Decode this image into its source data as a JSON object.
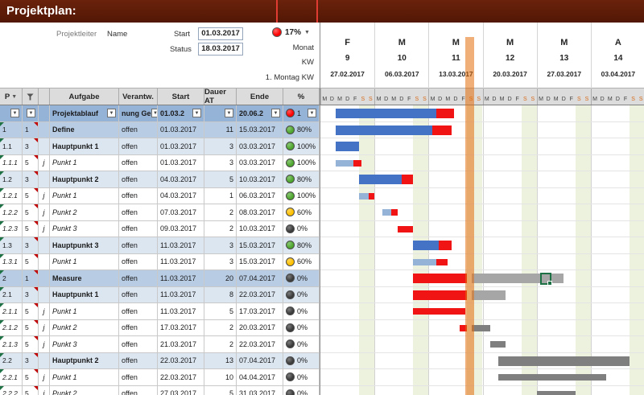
{
  "title": "Projektplan:",
  "header": {
    "projektleiter_label": "Projektleiter",
    "projektleiter_value": "Name",
    "start_label": "Start",
    "start_value": "01.03.2017",
    "status_label": "Status",
    "status_value": "18.03.2017",
    "progress_value": "17%",
    "monat_label": "Monat",
    "kw_label": "KW",
    "montag_label": "1. Montag KW"
  },
  "timeline": {
    "months": [
      "F",
      "M",
      "M",
      "M",
      "M",
      "A"
    ],
    "weeks": [
      "9",
      "10",
      "11",
      "12",
      "13",
      "14"
    ],
    "week_dates": [
      "27.02.2017",
      "06.03.2017",
      "13.03.2017",
      "20.03.2017",
      "27.03.2017",
      "03.04.2017"
    ],
    "day_letters": [
      "M",
      "D",
      "M",
      "D",
      "F",
      "S",
      "S"
    ],
    "today_day_index": 19
  },
  "table": {
    "col_p": "P",
    "col_aufgabe": "Aufgabe",
    "col_verantw": "Verantw.",
    "col_start": "Start",
    "col_dauer": "Dauer AT",
    "col_ende": "Ende",
    "col_pct": "%",
    "filter_row": {
      "aufgabe": "Projektablauf",
      "verantw": "nung Ge",
      "start": "01.03.2",
      "dauer": "",
      "ende": "20.06.2",
      "ampel": "1",
      "light": "red",
      "type": "filter",
      "bars": [
        {
          "c": "blue",
          "s": 2,
          "e": 15
        },
        {
          "c": "red",
          "s": 15,
          "e": 17.3
        }
      ]
    },
    "rows": [
      {
        "p": "1",
        "prio": "1",
        "j": "",
        "aufgabe": "Define",
        "verantw": "offen",
        "start": "01.03.2017",
        "dauer": "11",
        "ende": "15.03.2017",
        "pct": "80%",
        "light": "green",
        "type": "phase",
        "bars": [
          {
            "c": "blue",
            "s": 2,
            "e": 14.5
          },
          {
            "c": "red",
            "s": 14.5,
            "e": 17
          }
        ]
      },
      {
        "p": "1.1",
        "prio": "3",
        "j": "",
        "aufgabe": "Hauptpunkt 1",
        "verantw": "offen",
        "start": "01.03.2017",
        "dauer": "3",
        "ende": "03.03.2017",
        "pct": "100%",
        "light": "green",
        "type": "haupt",
        "bars": [
          {
            "c": "blue",
            "s": 2,
            "e": 5
          }
        ]
      },
      {
        "p": "1.1.1",
        "prio": "5",
        "j": "j",
        "aufgabe": "Punkt 1",
        "verantw": "offen",
        "start": "01.03.2017",
        "dauer": "3",
        "ende": "03.03.2017",
        "pct": "100%",
        "light": "green",
        "type": "punkt",
        "bars": [
          {
            "c": "lightblue",
            "s": 2,
            "e": 4.3
          },
          {
            "c": "red",
            "s": 4.3,
            "e": 5.3
          }
        ]
      },
      {
        "p": "1.2",
        "prio": "3",
        "j": "",
        "aufgabe": "Hauptpunkt 2",
        "verantw": "offen",
        "start": "04.03.2017",
        "dauer": "5",
        "ende": "10.03.2017",
        "pct": "80%",
        "light": "green",
        "type": "haupt",
        "bars": [
          {
            "c": "blue",
            "s": 5,
            "e": 10.5
          },
          {
            "c": "red",
            "s": 10.5,
            "e": 12
          }
        ]
      },
      {
        "p": "1.2.1",
        "prio": "5",
        "j": "j",
        "aufgabe": "Punkt 1",
        "verantw": "offen",
        "start": "04.03.2017",
        "dauer": "1",
        "ende": "06.03.2017",
        "pct": "100%",
        "light": "green",
        "type": "punkt",
        "bars": [
          {
            "c": "lightblue",
            "s": 5,
            "e": 6.2
          },
          {
            "c": "red",
            "s": 6.2,
            "e": 7
          }
        ]
      },
      {
        "p": "1.2.2",
        "prio": "5",
        "j": "j",
        "aufgabe": "Punkt 2",
        "verantw": "offen",
        "start": "07.03.2017",
        "dauer": "2",
        "ende": "08.03.2017",
        "pct": "60%",
        "light": "yellow",
        "type": "punkt",
        "bars": [
          {
            "c": "lightblue",
            "s": 8,
            "e": 9.2
          },
          {
            "c": "red",
            "s": 9.2,
            "e": 10
          }
        ]
      },
      {
        "p": "1.2.3",
        "prio": "5",
        "j": "j",
        "aufgabe": "Punkt 3",
        "verantw": "offen",
        "start": "09.03.2017",
        "dauer": "2",
        "ende": "10.03.2017",
        "pct": "0%",
        "light": "black",
        "type": "punkt",
        "bars": [
          {
            "c": "red",
            "s": 10,
            "e": 12
          }
        ]
      },
      {
        "p": "1.3",
        "prio": "3",
        "j": "",
        "aufgabe": "Hauptpunkt 3",
        "verantw": "offen",
        "start": "11.03.2017",
        "dauer": "3",
        "ende": "15.03.2017",
        "pct": "80%",
        "light": "green",
        "type": "haupt",
        "bars": [
          {
            "c": "blue",
            "s": 12,
            "e": 15.3
          },
          {
            "c": "red",
            "s": 15.3,
            "e": 17
          }
        ]
      },
      {
        "p": "1.3.1",
        "prio": "5",
        "j": "",
        "aufgabe": "Punkt 1",
        "verantw": "offen",
        "start": "11.03.2017",
        "dauer": "3",
        "ende": "15.03.2017",
        "pct": "60%",
        "light": "yellow",
        "type": "punkt",
        "bars": [
          {
            "c": "lightblue",
            "s": 12,
            "e": 15
          },
          {
            "c": "red",
            "s": 15,
            "e": 16.5
          }
        ]
      },
      {
        "p": "2",
        "prio": "1",
        "j": "",
        "aufgabe": "Measure",
        "verantw": "offen",
        "start": "11.03.2017",
        "dauer": "20",
        "ende": "07.04.2017",
        "pct": "0%",
        "light": "black",
        "type": "phase",
        "bars": [
          {
            "c": "red",
            "s": 12,
            "e": 19
          },
          {
            "c": "graylight",
            "s": 19.6,
            "e": 31.5
          }
        ]
      },
      {
        "p": "2.1",
        "prio": "3",
        "j": "",
        "aufgabe": "Hauptpunkt 1",
        "verantw": "offen",
        "start": "11.03.2017",
        "dauer": "8",
        "ende": "22.03.2017",
        "pct": "0%",
        "light": "black",
        "type": "haupt",
        "bars": [
          {
            "c": "red",
            "s": 12,
            "e": 19
          },
          {
            "c": "graylight",
            "s": 19.6,
            "e": 24
          }
        ]
      },
      {
        "p": "2.1.1",
        "prio": "5",
        "j": "j",
        "aufgabe": "Punkt 1",
        "verantw": "offen",
        "start": "11.03.2017",
        "dauer": "5",
        "ende": "17.03.2017",
        "pct": "0%",
        "light": "black",
        "type": "punkt",
        "bars": [
          {
            "c": "red",
            "s": 12,
            "e": 18.8
          }
        ]
      },
      {
        "p": "2.1.2",
        "prio": "5",
        "j": "j",
        "aufgabe": "Punkt 2",
        "verantw": "offen",
        "start": "17.03.2017",
        "dauer": "2",
        "ende": "20.03.2017",
        "pct": "0%",
        "light": "black",
        "type": "punkt",
        "bars": [
          {
            "c": "red",
            "s": 18,
            "e": 19
          },
          {
            "c": "gray",
            "s": 19.6,
            "e": 22
          }
        ]
      },
      {
        "p": "2.1.3",
        "prio": "5",
        "j": "j",
        "aufgabe": "Punkt 3",
        "verantw": "offen",
        "start": "21.03.2017",
        "dauer": "2",
        "ende": "22.03.2017",
        "pct": "0%",
        "light": "black",
        "type": "punkt",
        "bars": [
          {
            "c": "gray",
            "s": 22,
            "e": 24
          }
        ]
      },
      {
        "p": "2.2",
        "prio": "3",
        "j": "",
        "aufgabe": "Hauptpunkt 2",
        "verantw": "offen",
        "start": "22.03.2017",
        "dauer": "13",
        "ende": "07.04.2017",
        "pct": "0%",
        "light": "black",
        "type": "haupt",
        "bars": [
          {
            "c": "gray",
            "s": 23,
            "e": 40
          }
        ]
      },
      {
        "p": "2.2.1",
        "prio": "5",
        "j": "j",
        "aufgabe": "Punkt 1",
        "verantw": "offen",
        "start": "22.03.2017",
        "dauer": "10",
        "ende": "04.04.2017",
        "pct": "0%",
        "light": "black",
        "type": "punkt",
        "bars": [
          {
            "c": "gray",
            "s": 23,
            "e": 37
          }
        ]
      },
      {
        "p": "2.2.2",
        "prio": "5",
        "j": "j",
        "aufgabe": "Punkt 2",
        "verantw": "offen",
        "start": "27.03.2017",
        "dauer": "5",
        "ende": "31.03.2017",
        "pct": "0%",
        "light": "black",
        "type": "punkt",
        "bars": [
          {
            "c": "gray",
            "s": 28,
            "e": 33
          }
        ]
      }
    ]
  },
  "selection": {
    "gantt_row": 10,
    "day": 28.6
  },
  "colors": {
    "titlebar": "#5B1D08",
    "accent_red": "#C00000",
    "bar_blue": "#4472C4",
    "bar_lightblue": "#95B3D7",
    "bar_red": "#F01414",
    "bar_gray": "#7F7F7F",
    "bar_graylight": "#A6A6A6",
    "weekend": "#E5EDD3",
    "today": "#E46C0A",
    "light_green": "#4EA72E",
    "light_yellow": "#FFC000",
    "light_black": "#3B3B3B",
    "light_red": "#FF0000"
  }
}
